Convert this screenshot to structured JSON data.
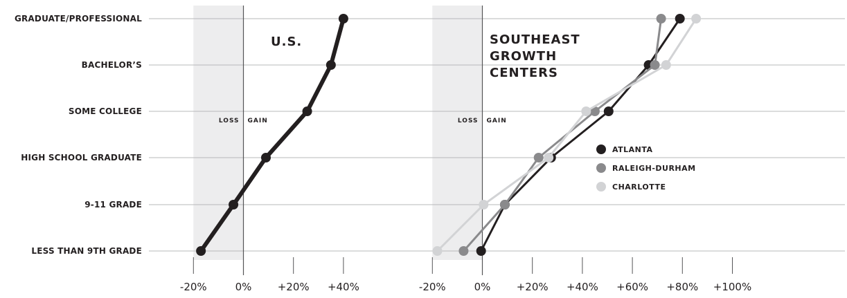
{
  "chart_data": {
    "type": "line",
    "categories": [
      "GRADUATE/PROFESSIONAL",
      "BACHELOR’S",
      "SOME COLLEGE",
      "HIGH SCHOOL GRADUATE",
      "9-11 GRADE",
      "LESS THAN 9TH GRADE"
    ],
    "loss_label": "LOSS",
    "gain_label": "GAIN",
    "panels": [
      {
        "title_lines": [
          "U.S."
        ],
        "xlim": [
          -20,
          40
        ],
        "xticks": [
          -20,
          0,
          20,
          40
        ],
        "xtick_labels": [
          "-20%",
          "0%",
          "+20%",
          "+40%"
        ],
        "series": [
          {
            "name": "",
            "color": "#231f20",
            "values": [
              40,
              35,
              25.5,
              9,
              -4,
              -17
            ]
          }
        ]
      },
      {
        "title_lines": [
          "SOUTHEAST",
          "GROWTH",
          "CENTERS"
        ],
        "xlim": [
          -20,
          100
        ],
        "xticks": [
          -20,
          0,
          20,
          40,
          60,
          80,
          100
        ],
        "xtick_labels": [
          "-20%",
          "0%",
          "+20%",
          "+40%",
          "+60%",
          "+80%",
          "+100%"
        ],
        "series": [
          {
            "name": "ATLANTA",
            "color": "#231f20",
            "values": [
              79,
              66.5,
              50.5,
              27.5,
              9,
              -0.5
            ]
          },
          {
            "name": "RALEIGH-DURHAM",
            "color": "#8a8a8c",
            "values": [
              71.5,
              69,
              45,
              22.5,
              9,
              -7.5
            ]
          },
          {
            "name": "CHARLOTTE",
            "color": "#d2d3d5",
            "values": [
              85.5,
              73.5,
              41.5,
              26.5,
              0.5,
              -18
            ]
          }
        ],
        "legend_position": "center-right"
      }
    ],
    "grid": true
  }
}
